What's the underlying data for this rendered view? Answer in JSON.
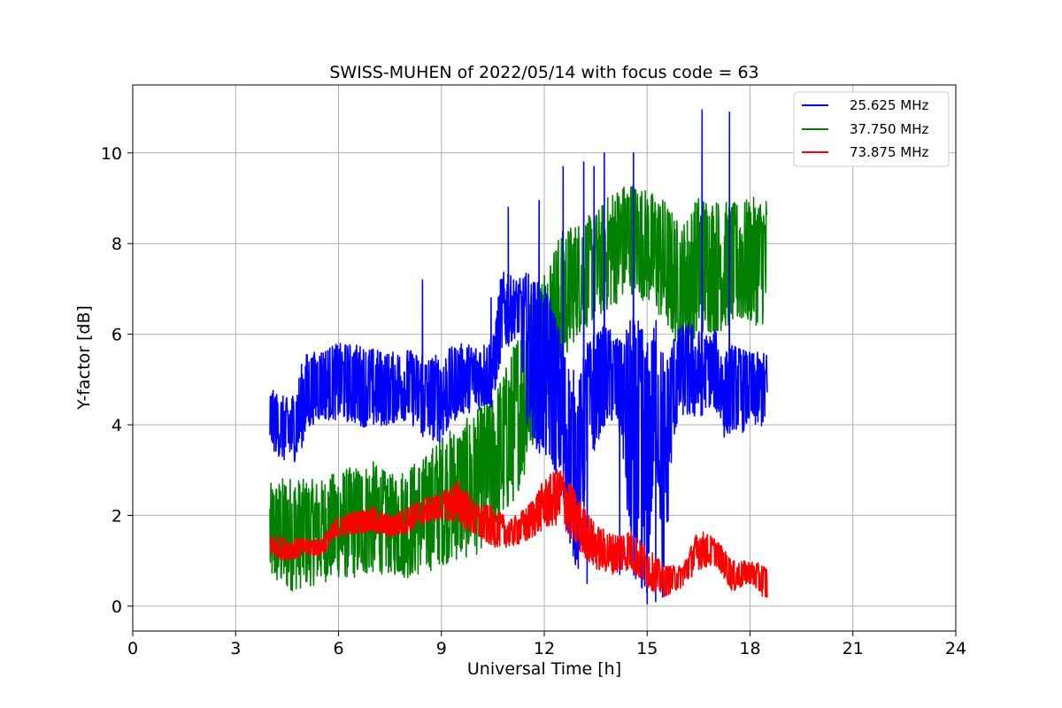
{
  "chart_data": {
    "type": "line",
    "title": "SWISS-MUHEN of 2022/05/14 with focus code = 63",
    "xlabel": "Universal Time [h]",
    "ylabel": "Y-factor [dB]",
    "xlim": [
      0,
      24
    ],
    "ylim": [
      -0.55,
      11.5
    ],
    "x_ticks": [
      0,
      3,
      6,
      9,
      12,
      15,
      18,
      21,
      24
    ],
    "x_tick_labels": [
      "0",
      "3",
      "6",
      "9",
      "12",
      "15",
      "18",
      "21",
      "24"
    ],
    "y_ticks": [
      0,
      2,
      4,
      6,
      8,
      10
    ],
    "y_tick_labels": [
      "0",
      "2",
      "4",
      "6",
      "8",
      "10"
    ],
    "grid": true,
    "legend_position": "top-right",
    "series": [
      {
        "name": "25.625 MHz",
        "color": "#0000ff",
        "x": [
          4.0,
          4.25,
          4.5,
          4.75,
          5.0,
          5.25,
          5.5,
          6.0,
          6.5,
          7.0,
          7.5,
          8.0,
          8.5,
          9.0,
          9.5,
          10.0,
          10.5,
          10.75,
          11.0,
          11.25,
          11.5,
          11.75,
          12.0,
          12.25,
          12.5,
          12.75,
          13.0,
          13.25,
          13.5,
          13.75,
          14.0,
          14.25,
          14.5,
          14.75,
          15.0,
          15.25,
          15.5,
          15.75,
          16.0,
          16.25,
          16.5,
          16.75,
          17.0,
          17.25,
          17.5,
          17.75,
          18.0,
          18.25,
          18.5
        ],
        "low": [
          3.5,
          3.3,
          3.1,
          3.2,
          3.6,
          4.0,
          4.1,
          4.1,
          4.0,
          3.9,
          4.0,
          4.1,
          3.7,
          3.6,
          4.2,
          4.3,
          4.4,
          5.5,
          5.8,
          6.0,
          4.0,
          3.5,
          3.2,
          3.0,
          2.7,
          1.2,
          0.7,
          3.2,
          3.5,
          4.0,
          4.0,
          3.8,
          0.8,
          0.5,
          0.3,
          3.2,
          0.4,
          3.6,
          4.2,
          4.1,
          4.1,
          4.4,
          4.3,
          3.7,
          3.9,
          3.8,
          4.0,
          3.9,
          4.0
        ],
        "high": [
          4.8,
          4.7,
          4.6,
          4.8,
          5.6,
          5.6,
          5.7,
          5.8,
          5.8,
          5.7,
          5.6,
          5.7,
          5.5,
          5.6,
          5.8,
          5.8,
          5.9,
          7.4,
          7.3,
          7.2,
          7.4,
          7.2,
          7.1,
          6.8,
          5.9,
          5.4,
          5.0,
          5.8,
          6.0,
          6.2,
          6.1,
          5.8,
          6.4,
          6.3,
          5.8,
          6.3,
          5.4,
          6.0,
          6.2,
          6.3,
          6.1,
          6.0,
          6.1,
          5.6,
          5.8,
          5.7,
          5.6,
          5.6,
          5.6
        ],
        "spikes": [
          [
            8.45,
            7.2
          ],
          [
            10.45,
            6.8
          ],
          [
            10.95,
            8.8
          ],
          [
            11.85,
            8.95
          ],
          [
            12.55,
            9.7
          ],
          [
            13.15,
            9.8
          ],
          [
            13.45,
            9.7
          ],
          [
            13.75,
            10.0
          ],
          [
            14.6,
            10.0
          ],
          [
            16.6,
            10.95
          ],
          [
            17.4,
            10.9
          ]
        ],
        "dips": [
          [
            13.25,
            0.5
          ],
          [
            14.2,
            0.7
          ],
          [
            14.85,
            0.4
          ],
          [
            15.0,
            0.05
          ],
          [
            15.25,
            0.1
          ],
          [
            15.45,
            0.2
          ]
        ]
      },
      {
        "name": "37.750 MHz",
        "color": "#008000",
        "x": [
          4.0,
          4.5,
          5.0,
          5.5,
          6.0,
          6.5,
          7.0,
          7.5,
          8.0,
          8.5,
          9.0,
          9.5,
          10.0,
          10.5,
          11.0,
          11.5,
          12.0,
          12.5,
          13.0,
          13.5,
          14.0,
          14.5,
          15.0,
          15.5,
          16.0,
          16.5,
          17.0,
          17.5,
          18.0,
          18.5
        ],
        "low": [
          0.5,
          0.3,
          0.4,
          0.5,
          0.6,
          0.6,
          0.7,
          0.7,
          0.6,
          0.7,
          0.9,
          1.0,
          1.1,
          1.6,
          2.1,
          3.0,
          4.5,
          5.3,
          6.0,
          6.3,
          6.6,
          6.9,
          6.7,
          6.2,
          5.6,
          6.0,
          6.0,
          6.2,
          6.2,
          6.2
        ],
        "high": [
          2.7,
          2.9,
          2.8,
          2.8,
          3.0,
          3.1,
          3.2,
          2.9,
          3.1,
          3.3,
          3.8,
          4.0,
          4.3,
          4.7,
          5.5,
          6.8,
          7.5,
          8.3,
          8.5,
          8.7,
          9.2,
          9.4,
          9.2,
          9.0,
          8.4,
          9.1,
          9.0,
          8.9,
          9.0,
          9.1
        ]
      },
      {
        "name": "73.875 MHz",
        "color": "#ff0000",
        "x": [
          4.0,
          4.5,
          5.0,
          5.5,
          6.0,
          6.5,
          7.0,
          7.5,
          8.0,
          8.5,
          9.0,
          9.5,
          10.0,
          10.5,
          11.0,
          11.5,
          12.0,
          12.5,
          13.0,
          13.5,
          14.0,
          14.5,
          15.0,
          15.5,
          16.0,
          16.5,
          17.0,
          17.5,
          18.0,
          18.5
        ],
        "low": [
          1.1,
          1.0,
          1.1,
          1.1,
          1.5,
          1.6,
          1.6,
          1.5,
          1.6,
          1.8,
          1.9,
          1.8,
          1.5,
          1.3,
          1.3,
          1.4,
          1.7,
          1.8,
          1.2,
          0.8,
          0.7,
          0.8,
          0.4,
          0.2,
          0.4,
          0.8,
          0.9,
          0.3,
          0.5,
          0.1
        ],
        "high": [
          1.6,
          1.5,
          1.5,
          1.5,
          2.0,
          2.1,
          2.2,
          2.0,
          2.2,
          2.4,
          2.5,
          2.8,
          2.3,
          2.2,
          1.9,
          2.2,
          2.8,
          3.1,
          2.4,
          1.8,
          1.6,
          1.7,
          1.3,
          0.9,
          0.9,
          1.7,
          1.5,
          1.0,
          1.0,
          0.9
        ]
      }
    ]
  }
}
